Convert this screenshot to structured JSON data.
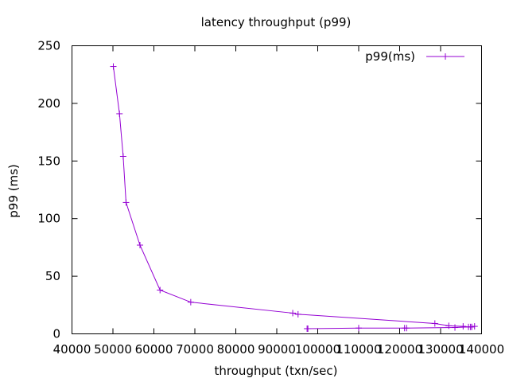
{
  "chart_data": {
    "type": "line",
    "title": "latency throughput (p99)",
    "xlabel": "throughput (txn/sec)",
    "ylabel": "p99 (ms)",
    "xlim": [
      40000,
      140000
    ],
    "ylim": [
      0,
      250
    ],
    "x_ticks": [
      40000,
      50000,
      60000,
      70000,
      80000,
      90000,
      100000,
      110000,
      120000,
      130000,
      140000
    ],
    "y_ticks": [
      0,
      50,
      100,
      150,
      200,
      250
    ],
    "x_tick_labels": [
      "40000",
      "50000",
      "60000",
      "70000",
      "80000",
      "90000",
      "100000",
      "110000",
      "120000",
      "130000",
      "140000"
    ],
    "y_tick_labels": [
      "0",
      "50",
      "100",
      "150",
      "200",
      "250"
    ],
    "grid": false,
    "legend_position": "top-right",
    "series": [
      {
        "name": "p99(ms)",
        "color": "#9400d3",
        "marker": "plus",
        "points": [
          [
            50100,
            232
          ],
          [
            51600,
            191
          ],
          [
            52500,
            154
          ],
          [
            53200,
            114
          ],
          [
            56600,
            77
          ],
          [
            61500,
            38
          ],
          [
            69000,
            27.5
          ],
          [
            93900,
            18
          ],
          [
            95200,
            17
          ],
          [
            128600,
            9
          ],
          [
            132000,
            7
          ],
          [
            135500,
            6.5
          ],
          [
            136800,
            6
          ],
          [
            137600,
            6
          ],
          [
            138300,
            6.5
          ],
          [
            137300,
            6
          ],
          [
            133500,
            5.5
          ],
          [
            121700,
            5
          ],
          [
            121200,
            5
          ],
          [
            110000,
            5
          ],
          [
            97600,
            4.5
          ],
          [
            97400,
            4.5
          ]
        ]
      }
    ]
  }
}
